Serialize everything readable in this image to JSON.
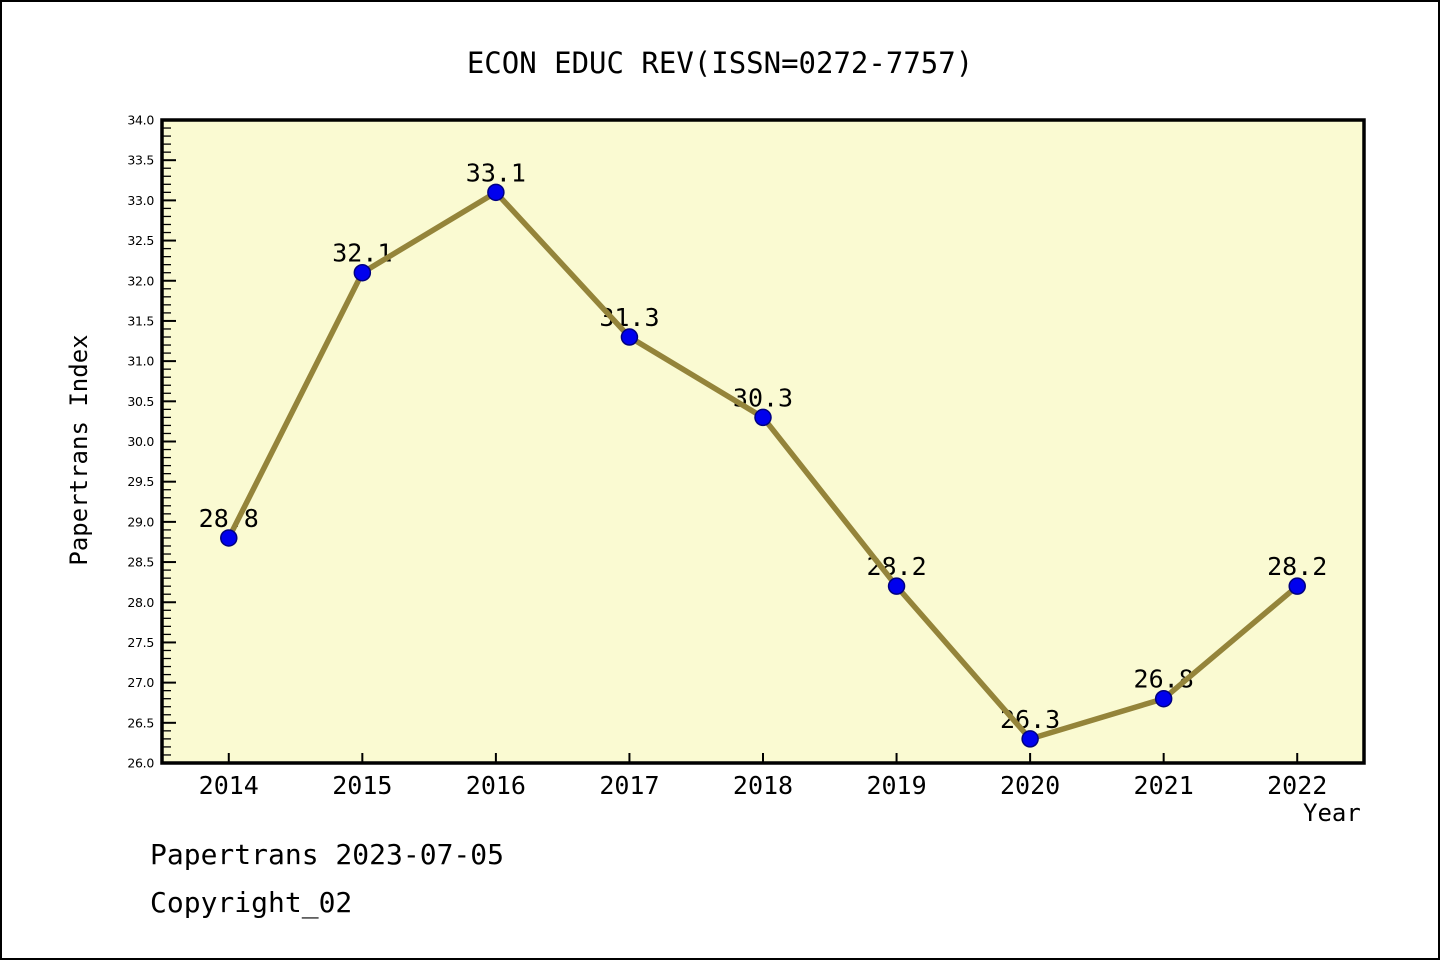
{
  "header": {
    "title": "ECON EDUC REV(ISSN=0272-7757)"
  },
  "footer": {
    "line1": "Papertrans 2023-07-05",
    "line2": "Copyright_02"
  },
  "chart_data": {
    "type": "line",
    "title": "ECON EDUC REV(ISSN=0272-7757)",
    "xlabel": "Year",
    "ylabel": "Papertrans Index",
    "categories": [
      "2014",
      "2015",
      "2016",
      "2017",
      "2018",
      "2019",
      "2020",
      "2021",
      "2022"
    ],
    "series": [
      {
        "name": "Papertrans Index",
        "values": [
          28.8,
          32.1,
          33.1,
          31.3,
          30.3,
          28.2,
          26.3,
          26.8,
          28.2
        ],
        "point_labels": [
          "28.8",
          "32.1",
          "33.1",
          "31.3",
          "30.3",
          "28.2",
          "26.3",
          "26.8",
          "28.2"
        ]
      }
    ],
    "ylim": [
      26.0,
      34.0
    ],
    "y_major_step": 0.5,
    "y_minor_step": 0.1,
    "grid": false,
    "legend": "none",
    "colors": {
      "plot_background": "#FAFAD2",
      "page_background": "#FFFFFF",
      "line": "#94843A",
      "marker_fill": "#0000EE",
      "marker_edge": "#000080",
      "axis": "#000000",
      "text": "#000000"
    }
  }
}
